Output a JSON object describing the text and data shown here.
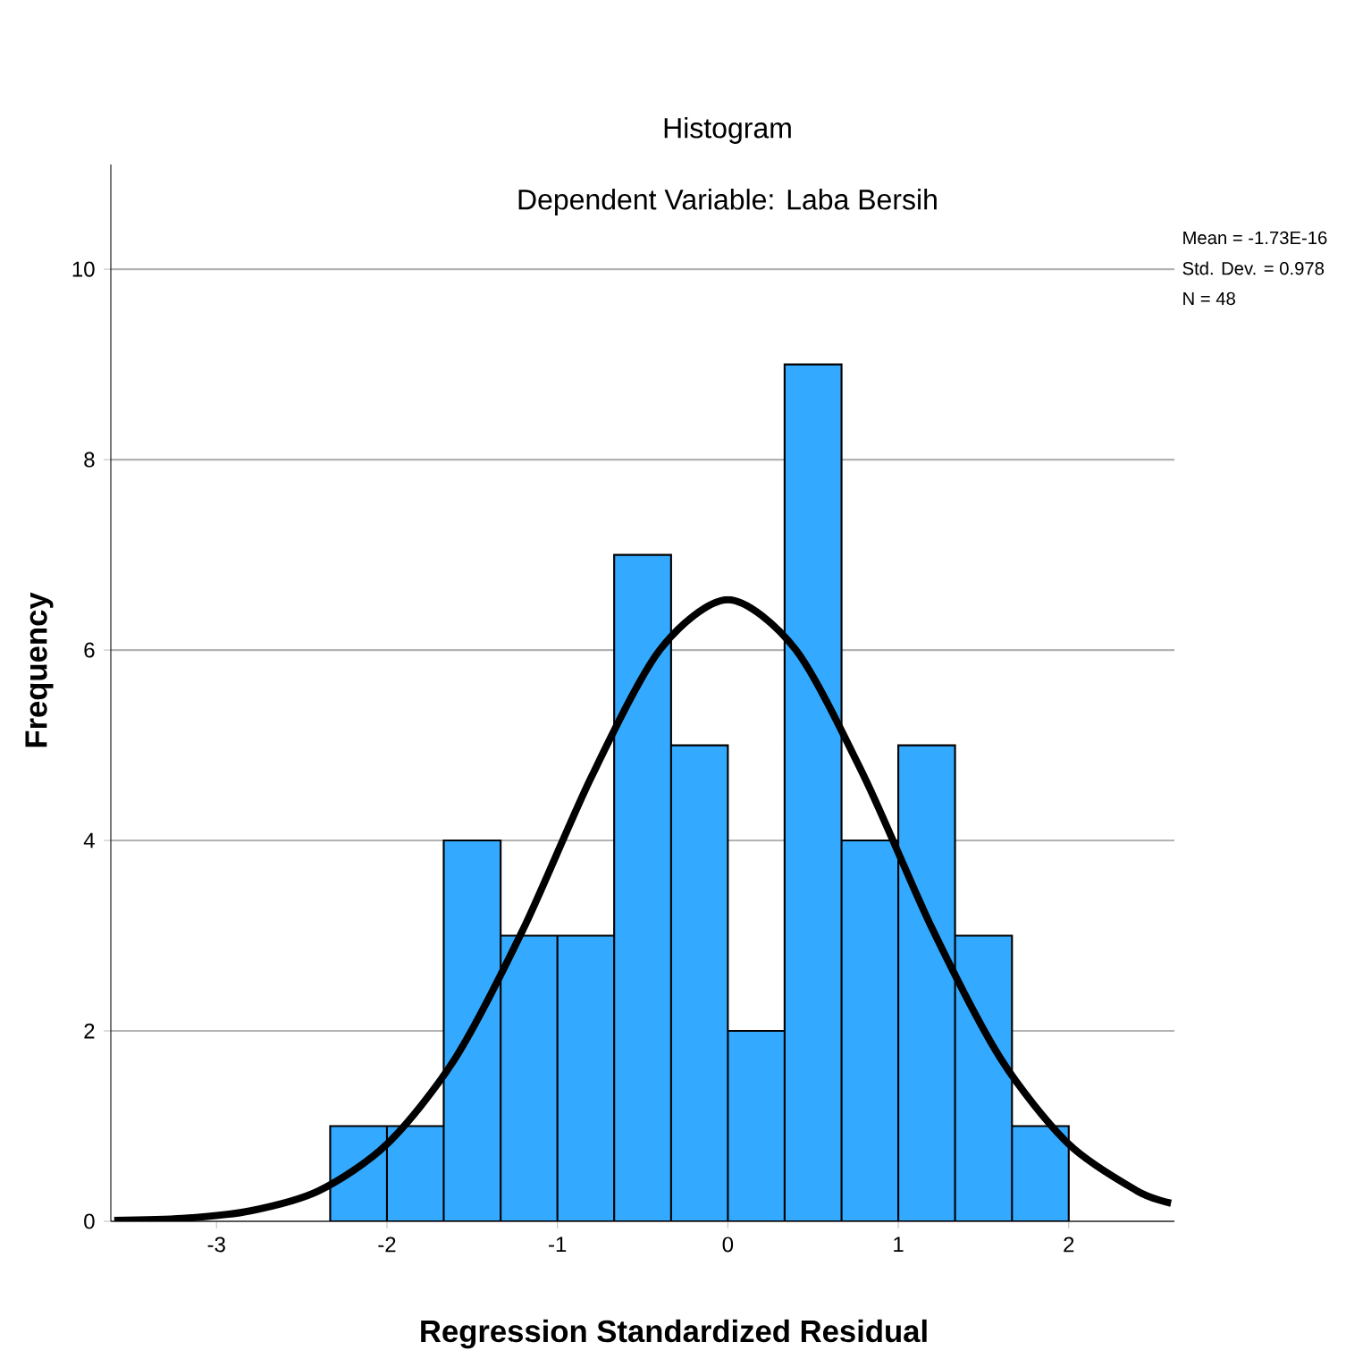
{
  "chart_data": {
    "type": "histogram",
    "title": "Histogram",
    "subtitle": "Dependent Variable: Laba Bersih",
    "xlabel": "Regression Standardized Residual",
    "ylabel": "Frequency",
    "bins": [
      -2.333,
      -2,
      -1.667,
      -1.333,
      -1,
      -0.667,
      -0.333,
      0,
      0.333,
      0.667,
      1,
      1.333,
      1.667,
      2
    ],
    "values": [
      1,
      1,
      4,
      3,
      3,
      7,
      5,
      2,
      9,
      4,
      5,
      3,
      1
    ],
    "color": "#33aaff",
    "series": [
      {
        "type": "line",
        "color": "#000000",
        "x": [
          -3.6,
          -3.2,
          -2.8,
          -2.4,
          -2.0,
          -1.6,
          -1.2,
          -0.8,
          -0.4,
          0,
          0.4,
          0.8,
          1.2,
          1.6,
          2.0,
          2.4,
          2.6
        ],
        "values": [
          0.01,
          0.03,
          0.11,
          0.32,
          0.81,
          1.71,
          3.07,
          4.67,
          6.0,
          6.53,
          6.0,
          4.67,
          3.07,
          1.71,
          0.81,
          0.32,
          0.19
        ]
      }
    ],
    "xlim": [
      -3.62,
      2.62
    ],
    "ylim": [
      0,
      11.1
    ],
    "xticks": [
      -3,
      -2,
      -1,
      0,
      1,
      2
    ],
    "yticks": [
      0,
      2,
      4,
      6,
      8,
      10
    ],
    "grid": "y",
    "annotations": [
      "Mean = -1.73E-16",
      "Std. Dev. = 0.978",
      "N = 48"
    ]
  }
}
